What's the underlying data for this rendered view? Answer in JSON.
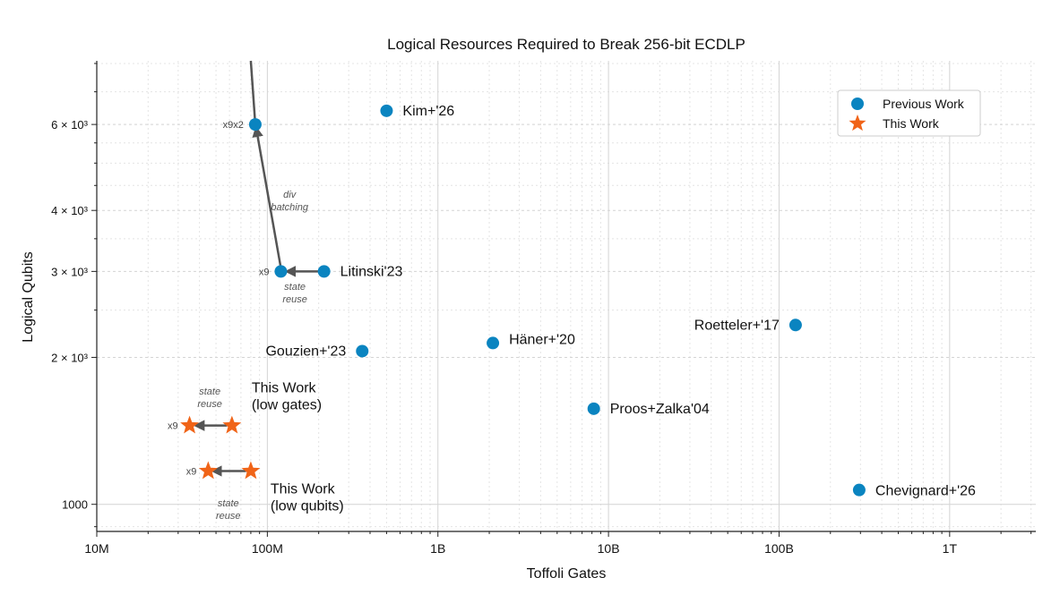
{
  "chart_data": {
    "type": "scatter",
    "title": "Logical Resources Required to Break 256-bit ECDLP",
    "xlabel": "Toffoli Gates",
    "ylabel": "Logical Qubits",
    "x_scale": "log",
    "y_scale": "log",
    "xlim": [
      10000000.0,
      3200000000000.0
    ],
    "ylim": [
      880,
      8100
    ],
    "grid": true,
    "legend_position": "top-right",
    "x_ticks": [
      {
        "value": 10000000.0,
        "label": "10M"
      },
      {
        "value": 100000000.0,
        "label": "100M"
      },
      {
        "value": 1000000000.0,
        "label": "1B"
      },
      {
        "value": 10000000000.0,
        "label": "10B"
      },
      {
        "value": 100000000000.0,
        "label": "100B"
      },
      {
        "value": 1000000000000.0,
        "label": "1T"
      }
    ],
    "y_ticks": [
      {
        "value": 1000,
        "label": "1000"
      },
      {
        "value": 2000,
        "label": "2 × 10³"
      },
      {
        "value": 3000,
        "label": "3 × 10³"
      },
      {
        "value": 4000,
        "label": "4 × 10³"
      },
      {
        "value": 6000,
        "label": "6 × 10³"
      }
    ],
    "series": [
      {
        "name": "Previous Work",
        "marker": "circle",
        "color": "#0a84c0",
        "points": [
          {
            "x": 500000000.0,
            "y": 6400,
            "label": "Kim+'26"
          },
          {
            "x": 215000000.0,
            "y": 3000,
            "label": "Litinski'23"
          },
          {
            "x": 360000000.0,
            "y": 2060,
            "label": "Gouzien+'23"
          },
          {
            "x": 2100000000.0,
            "y": 2140,
            "label": "Häner+'20"
          },
          {
            "x": 125000000000.0,
            "y": 2330,
            "label": "Roetteler+'17"
          },
          {
            "x": 8200000000.0,
            "y": 1570,
            "label": "Proos+Zalka'04"
          },
          {
            "x": 295000000000.0,
            "y": 1070,
            "label": "Chevignard+'26"
          }
        ]
      },
      {
        "name": "This Work",
        "marker": "star",
        "color": "#f06418",
        "points": [
          {
            "x": 62000000.0,
            "y": 1450,
            "label": "This Work|(low gates)"
          },
          {
            "x": 80000000.0,
            "y": 1170,
            "label": "This Work|(low qubits)"
          }
        ]
      }
    ],
    "derived_points": [
      {
        "x": 120000000.0,
        "y": 3000,
        "marker": "circle",
        "label": "x9"
      },
      {
        "x": 85000000.0,
        "y": 6000,
        "marker": "circle",
        "label": "x9x2"
      },
      {
        "x": 35000000.0,
        "y": 1450,
        "marker": "star",
        "label": "x9"
      },
      {
        "x": 45000000.0,
        "y": 1170,
        "marker": "star",
        "label": "x9"
      }
    ],
    "annotations": [
      {
        "from": [
          200000000.0,
          3000
        ],
        "to": [
          130000000.0,
          3000
        ],
        "text": "state|reuse",
        "text_pos": [
          145000000.0,
          2750
        ]
      },
      {
        "from": [
          120000000.0,
          3050
        ],
        "to": [
          86000000.0,
          5900
        ],
        "text": "div|batching",
        "text_pos": [
          135000000.0,
          4250
        ]
      },
      {
        "from": [
          58000000.0,
          1450
        ],
        "to": [
          38000000.0,
          1450
        ],
        "text": "state|reuse",
        "text_pos": [
          46000000.0,
          1680
        ]
      },
      {
        "from": [
          75000000.0,
          1170
        ],
        "to": [
          48000000.0,
          1170
        ],
        "text": "state|reuse",
        "text_pos": [
          59000000.0,
          990
        ]
      }
    ],
    "trend_line": {
      "from": [
        85000000.0,
        6000
      ],
      "to": [
        80000000.0,
        8100
      ]
    }
  },
  "colors": {
    "previous": "#0a84c0",
    "this_work": "#f06418",
    "arrow": "#555555"
  }
}
